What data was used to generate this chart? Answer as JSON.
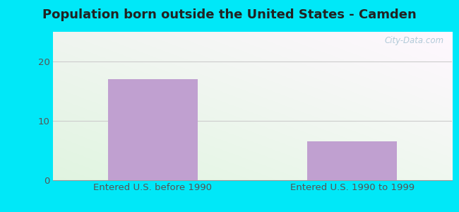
{
  "title": "Population born outside the United States - Camden",
  "categories": [
    "Entered U.S. before 1990",
    "Entered U.S. 1990 to 1999"
  ],
  "values": [
    17,
    6.5
  ],
  "bar_color": "#c0a0d0",
  "ylim": [
    0,
    25
  ],
  "yticks": [
    0,
    10,
    20
  ],
  "background_outer": "#00e8f8",
  "grid_color": "#dddddd",
  "title_fontsize": 13,
  "tick_label_fontsize": 9.5,
  "watermark_text": "City-Data.com"
}
